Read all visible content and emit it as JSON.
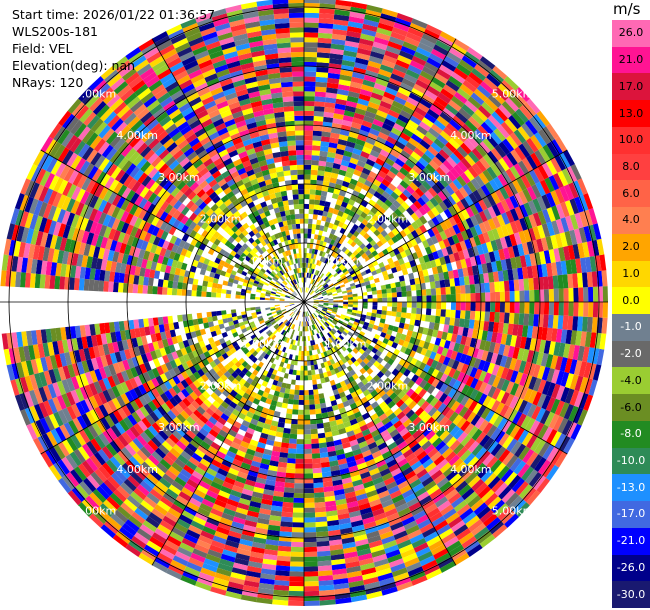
{
  "info": {
    "start_time": "Start time: 2026/01/22 01:36:57",
    "station": "WLS200s-181",
    "field": "Field: VEL",
    "elevation": "Elevation(deg): nan",
    "nrays": "NRays: 120"
  },
  "colorbar": {
    "unit": "m/s",
    "ticks": [
      "26.0",
      "21.0",
      "17.0",
      "13.0",
      "10.0",
      "8.0",
      "6.0",
      "4.0",
      "2.0",
      "1.0",
      "0.0",
      "-1.0",
      "-2.0",
      "-4.0",
      "-6.0",
      "-8.0",
      "-10.0",
      "-13.0",
      "-17.0",
      "-21.0",
      "-26.0",
      "-30.0"
    ],
    "colors": [
      "#ff69b4",
      "#ff1493",
      "#dc143c",
      "#ff0000",
      "#ff3030",
      "#ff4040",
      "#ff6347",
      "#ff7f50",
      "#ffa500",
      "#ffd700",
      "#ffff00",
      "#708090",
      "#696969",
      "#9acd32",
      "#6b8e23",
      "#228b22",
      "#2e8b57",
      "#1e90ff",
      "#4169e1",
      "#0000ff",
      "#00008b",
      "#191970"
    ]
  },
  "rings": {
    "labels": [
      "1.00km",
      "2.00km",
      "3.00km",
      "4.00km",
      "5.00km"
    ]
  }
}
